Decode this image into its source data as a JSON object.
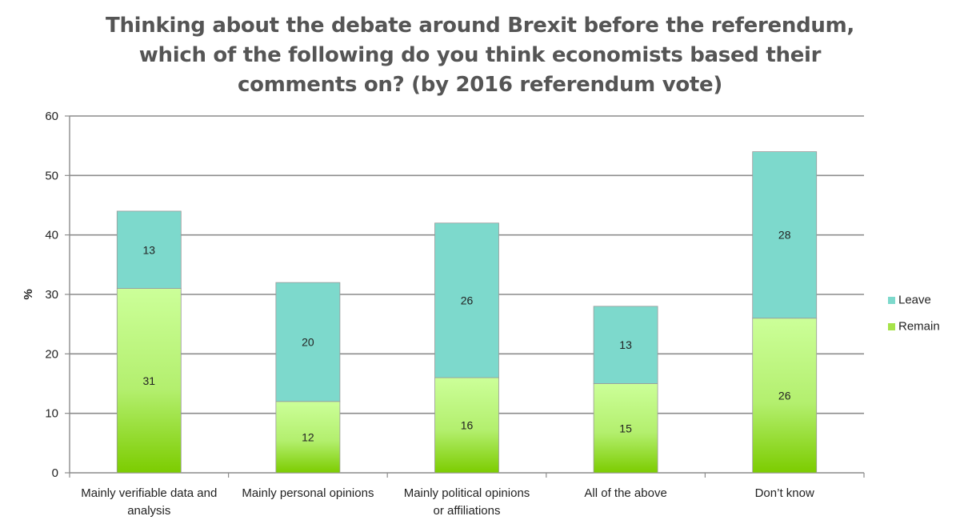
{
  "chart_data": {
    "type": "bar",
    "stacked": true,
    "title": "Thinking about the debate around Brexit before the referendum, which of the following do you think economists based their comments on? (by 2016 referendum vote)",
    "ylabel": "%",
    "ylim": [
      0,
      60
    ],
    "yticks": [
      0,
      10,
      20,
      30,
      40,
      50,
      60
    ],
    "grid": true,
    "legend_position": "right",
    "categories": [
      "Mainly verifiable data and analysis",
      "Mainly personal opinions",
      "Mainly political opinions or affiliations",
      "All of the above",
      "Don’t know"
    ],
    "category_lines": [
      [
        "Mainly verifiable data and",
        "analysis"
      ],
      [
        "Mainly personal opinions"
      ],
      [
        "Mainly political opinions",
        "or affiliations"
      ],
      [
        "All of the above"
      ],
      [
        "Don’t know"
      ]
    ],
    "series": [
      {
        "name": "Remain",
        "values": [
          31,
          12,
          16,
          15,
          26
        ],
        "color": "#a6e34a"
      },
      {
        "name": "Leave",
        "values": [
          13,
          20,
          26,
          13,
          28
        ],
        "color": "#7dd9cc"
      }
    ],
    "legend_order": [
      "Leave",
      "Remain"
    ]
  }
}
